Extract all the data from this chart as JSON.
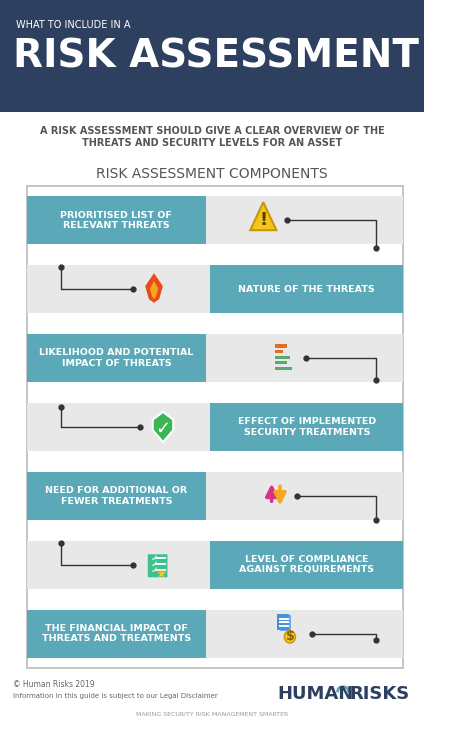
{
  "header_bg": "#2d4060",
  "header_subtitle": "WHAT TO INCLUDE IN A",
  "header_title": "RISK ASSESSMENT",
  "subtitle": "A RISK ASSESSMENT SHOULD GIVE A CLEAR OVERVIEW OF THE\nTHREATS AND SECURITY LEVELS FOR AN ASSET",
  "section_title": "RISK ASSESSMENT COMPONENTS",
  "body_bg": "#ffffff",
  "teal_color": "#5aa8b8",
  "dark_gray": "#555555",
  "items": [
    {
      "label": "PRIORITISED LIST OF\nRELEVANT THREATS",
      "side": "left"
    },
    {
      "label": "NATURE OF THE THREATS",
      "side": "right"
    },
    {
      "label": "LIKELIHOOD AND POTENTIAL\nIMPACT OF THREATS",
      "side": "left"
    },
    {
      "label": "EFFECT OF IMPLEMENTED\nSECURITY TREATMENTS",
      "side": "right"
    },
    {
      "label": "NEED FOR ADDITIONAL OR\nFEWER TREATMENTS",
      "side": "left"
    },
    {
      "label": "LEVEL OF COMPLIANCE\nAGAINST REQUIREMENTS",
      "side": "right"
    },
    {
      "label": "THE FINANCIAL IMPACT OF\nTHREATS AND TREATMENTS",
      "side": "left"
    }
  ],
  "footer_copyright": "© Human Risks 2019",
  "footer_disclaimer": "Information in this guide is subject to our Legal Disclaimer",
  "footer_tagline": "MAKING SECURITY RISK MANAGEMENT SMARTER"
}
